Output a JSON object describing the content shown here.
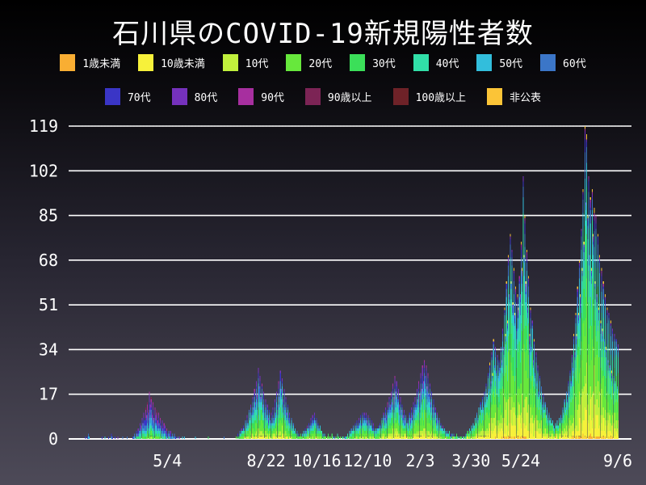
{
  "chart_data": {
    "type": "bar",
    "stacked": true,
    "title": "石川県のCOVID-19新規陽性者数",
    "ylim": [
      0,
      119
    ],
    "y_ticks": [
      0,
      17,
      34,
      51,
      68,
      85,
      102,
      119
    ],
    "x_ticks": [
      {
        "label": "5/4",
        "day": 107
      },
      {
        "label": "8/22",
        "day": 214
      },
      {
        "label": "10/16",
        "day": 269
      },
      {
        "label": "12/10",
        "day": 324
      },
      {
        "label": "2/3",
        "day": 381
      },
      {
        "label": "3/30",
        "day": 436
      },
      {
        "label": "5/24",
        "day": 490
      },
      {
        "label": "9/6",
        "day": 595
      }
    ],
    "grid_color": "#ffffff",
    "axis_text_color": "#ffffff",
    "legend_row_split": 8,
    "age_groups": [
      {
        "label": "1歳未満",
        "color": "#f9ae33"
      },
      {
        "label": "10歳未満",
        "color": "#f7f13a"
      },
      {
        "label": "10代",
        "color": "#c0f03c"
      },
      {
        "label": "20代",
        "color": "#67e83c"
      },
      {
        "label": "30代",
        "color": "#3bdf59"
      },
      {
        "label": "40代",
        "color": "#31dfa8"
      },
      {
        "label": "50代",
        "color": "#32bedc"
      },
      {
        "label": "60代",
        "color": "#3b76c8"
      },
      {
        "label": "70代",
        "color": "#3a35c6"
      },
      {
        "label": "80代",
        "color": "#7531bc"
      },
      {
        "label": "90代",
        "color": "#a72f9f"
      },
      {
        "label": "90歳以上",
        "color": "#7c2455"
      },
      {
        "label": "100歳以上",
        "color": "#6e2228"
      },
      {
        "label": "非公表",
        "color": "#fbc437"
      }
    ],
    "composition_eras": [
      {
        "until_day": 135,
        "shares": [
          0.0,
          0.01,
          0.02,
          0.08,
          0.08,
          0.1,
          0.15,
          0.16,
          0.15,
          0.12,
          0.08,
          0.03,
          0.01,
          0.01
        ]
      },
      {
        "until_day": 300,
        "shares": [
          0.005,
          0.04,
          0.07,
          0.2,
          0.15,
          0.14,
          0.13,
          0.1,
          0.07,
          0.05,
          0.02,
          0.008,
          0.002,
          0.005
        ]
      },
      {
        "until_day": 430,
        "shares": [
          0.005,
          0.05,
          0.08,
          0.18,
          0.14,
          0.14,
          0.13,
          0.1,
          0.08,
          0.06,
          0.025,
          0.008,
          0.002,
          0.005
        ]
      },
      {
        "until_day": 9999,
        "shares": [
          0.01,
          0.08,
          0.13,
          0.24,
          0.18,
          0.15,
          0.1,
          0.05,
          0.025,
          0.015,
          0.006,
          0.002,
          0.001,
          0.011
        ]
      }
    ],
    "daily_totals": [
      0,
      0,
      0,
      0,
      0,
      0,
      0,
      0,
      0,
      0,
      0,
      0,
      0,
      0,
      0,
      0,
      0,
      0,
      1,
      0,
      1,
      2,
      1,
      0,
      0,
      0,
      0,
      0,
      0,
      0,
      0,
      0,
      0,
      0,
      0,
      0,
      1,
      0,
      0,
      1,
      0,
      0,
      0,
      1,
      0,
      0,
      2,
      1,
      0,
      0,
      1,
      0,
      0,
      1,
      0,
      0,
      0,
      0,
      1,
      0,
      0,
      0,
      0,
      1,
      0,
      0,
      0,
      0,
      0,
      1,
      1,
      2,
      1,
      3,
      2,
      4,
      3,
      6,
      5,
      8,
      6,
      10,
      7,
      12,
      9,
      14,
      11,
      18,
      13,
      16,
      10,
      14,
      8,
      12,
      9,
      11,
      7,
      10,
      6,
      8,
      5,
      7,
      4,
      6,
      5,
      3,
      4,
      2,
      3,
      2,
      3,
      1,
      2,
      1,
      2,
      1,
      1,
      0,
      1,
      0,
      1,
      0,
      0,
      1,
      0,
      1,
      0,
      0,
      0,
      0,
      0,
      0,
      0,
      0,
      0,
      0,
      0,
      1,
      0,
      0,
      0,
      0,
      0,
      0,
      0,
      0,
      0,
      0,
      0,
      0,
      0,
      1,
      0,
      0,
      0,
      0,
      0,
      0,
      0,
      0,
      0,
      0,
      0,
      0,
      0,
      0,
      0,
      0,
      1,
      0,
      0,
      0,
      0,
      0,
      0,
      0,
      0,
      0,
      0,
      0,
      0,
      1,
      0,
      2,
      1,
      3,
      2,
      4,
      3,
      5,
      4,
      7,
      5,
      9,
      6,
      11,
      8,
      13,
      10,
      16,
      12,
      19,
      14,
      22,
      17,
      27,
      20,
      24,
      16,
      21,
      13,
      18,
      11,
      15,
      9,
      13,
      8,
      11,
      7,
      10,
      6,
      12,
      8,
      15,
      10,
      18,
      13,
      22,
      16,
      26,
      19,
      23,
      15,
      19,
      12,
      16,
      10,
      13,
      8,
      10,
      6,
      8,
      4,
      6,
      3,
      4,
      2,
      3,
      1,
      2,
      1,
      2,
      1,
      2,
      3,
      2,
      4,
      3,
      5,
      4,
      6,
      5,
      8,
      6,
      9,
      7,
      10,
      7,
      8,
      5,
      6,
      4,
      5,
      3,
      3,
      2,
      1,
      2,
      1,
      0,
      1,
      2,
      1,
      1,
      0,
      2,
      1,
      0,
      1,
      1,
      0,
      2,
      1,
      0,
      1,
      0,
      1,
      1,
      0,
      1,
      1,
      1,
      2,
      1,
      3,
      2,
      4,
      3,
      5,
      3,
      6,
      4,
      7,
      5,
      8,
      6,
      9,
      6,
      10,
      7,
      10,
      8,
      10,
      7,
      9,
      6,
      8,
      5,
      7,
      4,
      6,
      3,
      4,
      3,
      4,
      5,
      4,
      6,
      5,
      8,
      6,
      10,
      8,
      12,
      9,
      14,
      11,
      16,
      13,
      18,
      14,
      21,
      16,
      24,
      18,
      22,
      15,
      19,
      13,
      16,
      11,
      13,
      9,
      11,
      7,
      9,
      6,
      8,
      6,
      10,
      8,
      12,
      9,
      14,
      11,
      16,
      13,
      19,
      15,
      22,
      17,
      25,
      19,
      28,
      22,
      30,
      24,
      28,
      20,
      25,
      17,
      21,
      14,
      18,
      12,
      15,
      10,
      12,
      8,
      10,
      7,
      8,
      5,
      6,
      4,
      5,
      3,
      4,
      3,
      2,
      3,
      2,
      3,
      1,
      2,
      2,
      1,
      2,
      1,
      1,
      2,
      1,
      1,
      0,
      1,
      1,
      0,
      1,
      1,
      1,
      2,
      2,
      3,
      2,
      4,
      3,
      5,
      4,
      6,
      5,
      8,
      6,
      10,
      8,
      12,
      9,
      14,
      11,
      16,
      12,
      18,
      14,
      21,
      16,
      25,
      19,
      29,
      22,
      33,
      25,
      38,
      28,
      35,
      26,
      32,
      24,
      30,
      27,
      35,
      30,
      42,
      35,
      50,
      40,
      60,
      45,
      70,
      55,
      78,
      60,
      72,
      52,
      65,
      48,
      58,
      42,
      55,
      50,
      62,
      55,
      75,
      65,
      100,
      70,
      85,
      60,
      72,
      50,
      62,
      40,
      50,
      35,
      45,
      30,
      38,
      25,
      33,
      22,
      28,
      18,
      24,
      15,
      20,
      13,
      17,
      11,
      14,
      9,
      12,
      8,
      10,
      7,
      8,
      6,
      7,
      5,
      4,
      6,
      5,
      7,
      5,
      8,
      6,
      9,
      8,
      12,
      10,
      15,
      12,
      18,
      15,
      22,
      18,
      26,
      22,
      32,
      27,
      40,
      33,
      48,
      40,
      58,
      48,
      68,
      55,
      80,
      65,
      95,
      75,
      119,
      90,
      116,
      85,
      100,
      70,
      92,
      65,
      95,
      78,
      88,
      60,
      85,
      55,
      78,
      50,
      70,
      45,
      65,
      42,
      60,
      38,
      55,
      35,
      50,
      30,
      48,
      28,
      45,
      26,
      42,
      24,
      40,
      22,
      38,
      20,
      36
    ]
  }
}
